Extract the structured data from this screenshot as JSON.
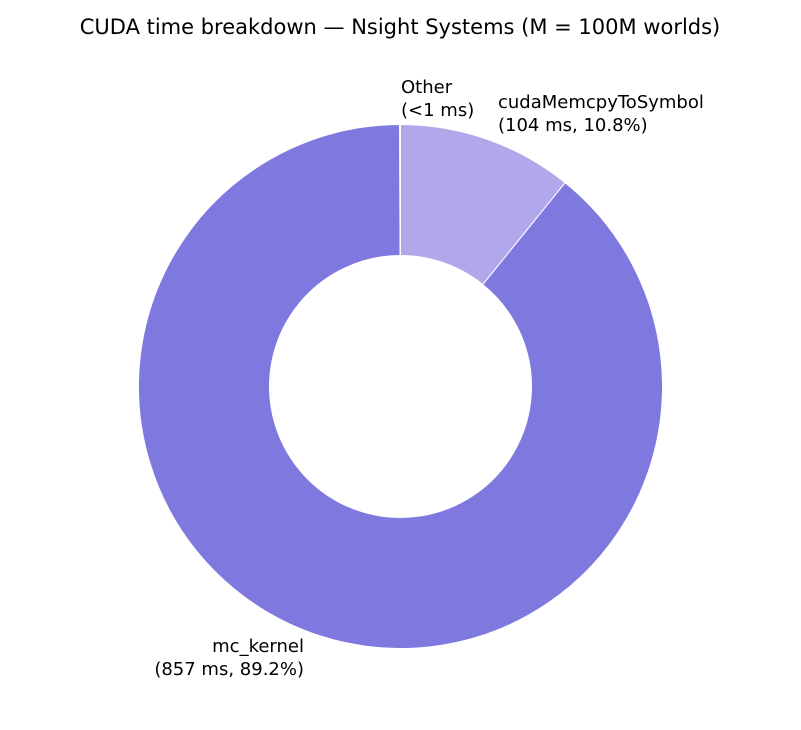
{
  "chart_data": {
    "type": "pie",
    "style": "donut",
    "title": "CUDA time breakdown — Nsight Systems  (M = 100M worlds)",
    "unit": "ms",
    "start": "top",
    "direction": "clockwise",
    "slices": [
      {
        "name": "cudaMemcpyToSymbol",
        "value": 104,
        "percent": 10.8,
        "label_line1": "cudaMemcpyToSymbol",
        "label_line2": "(104 ms, 10.8%)",
        "color": "#b0a8ea"
      },
      {
        "name": "mc_kernel",
        "value": 857,
        "percent": 89.2,
        "label_line1": "mc_kernel",
        "label_line2": "(857 ms, 89.2%)",
        "color": "#7f78df"
      },
      {
        "name": "Other",
        "value": 0.5,
        "percent": 0.05,
        "label_line1": "Other",
        "label_line2": "(<1 ms)",
        "color": "#7f78df"
      }
    ]
  }
}
